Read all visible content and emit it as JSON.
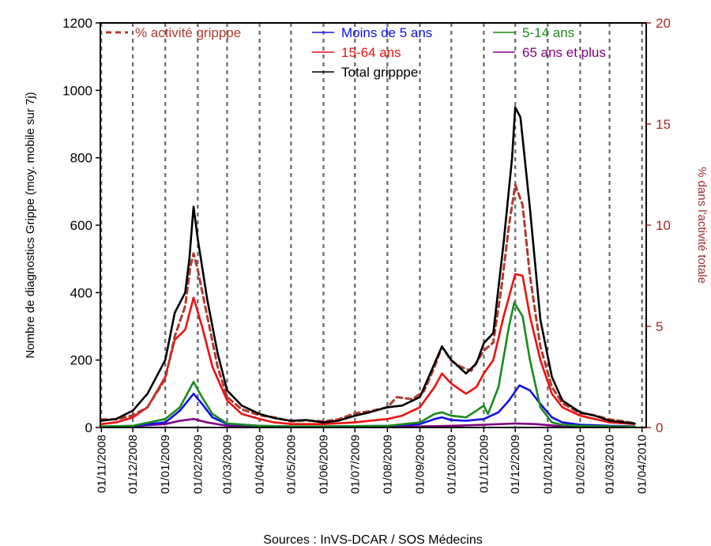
{
  "chart_data": {
    "type": "line",
    "ylabel": "Nombre de diagnostics Grippe (moy. mobile sur 7j)",
    "ylabel_right": "% dans l'activité totale",
    "source": "Sources : InVS-DCAR / SOS Médecins",
    "ylim": [
      0,
      1200
    ],
    "ylim_right": [
      0,
      20
    ],
    "yticks": [
      "0",
      "200",
      "400",
      "600",
      "800",
      "1000",
      "1200"
    ],
    "yticks_right": [
      "0",
      "5",
      "10",
      "15",
      "20"
    ],
    "xlim": [
      "2008-10-31",
      "2010-04-05"
    ],
    "x_ticks": [
      "01/11/2008",
      "01/12/2008",
      "01/01/2009",
      "01/02/2009",
      "01/03/2009",
      "01/04/2009",
      "01/05/2009",
      "01/06/2009",
      "01/07/2009",
      "01/08/2009",
      "01/09/2009",
      "01/10/2009",
      "01/11/2009",
      "01/12/2009",
      "01/01/2010",
      "01/02/2010",
      "01/03/2010",
      "01/04/2010"
    ],
    "x_tick_dates": [
      "2008-11-01",
      "2008-12-01",
      "2009-01-01",
      "2009-02-01",
      "2009-03-01",
      "2009-04-01",
      "2009-05-01",
      "2009-06-01",
      "2009-07-01",
      "2009-08-01",
      "2009-09-01",
      "2009-10-01",
      "2009-11-01",
      "2009-12-01",
      "2010-01-01",
      "2010-02-01",
      "2010-03-01",
      "2010-04-01"
    ],
    "grid": "vertical dashed lines at each month",
    "legend_placement": "top, inside plot",
    "series": [
      {
        "name": "% activité gripppe",
        "axis": "right",
        "color": "#b03a2e",
        "dash": "dashed",
        "points": [
          [
            "2008-11-01",
            0.4
          ],
          [
            "2008-11-15",
            0.4
          ],
          [
            "2008-12-01",
            0.6
          ],
          [
            "2008-12-15",
            1.0
          ],
          [
            "2009-01-01",
            2.4
          ],
          [
            "2009-01-10",
            4.5
          ],
          [
            "2009-01-20",
            6.0
          ],
          [
            "2009-01-25",
            8.0
          ],
          [
            "2009-01-28",
            8.6
          ],
          [
            "2009-02-01",
            7.8
          ],
          [
            "2009-02-10",
            5.5
          ],
          [
            "2009-02-20",
            3.0
          ],
          [
            "2009-03-01",
            1.5
          ],
          [
            "2009-03-15",
            0.9
          ],
          [
            "2009-04-01",
            0.6
          ],
          [
            "2009-04-15",
            0.5
          ],
          [
            "2009-05-01",
            0.3
          ],
          [
            "2009-05-15",
            0.35
          ],
          [
            "2009-06-01",
            0.3
          ],
          [
            "2009-06-15",
            0.4
          ],
          [
            "2009-07-01",
            0.7
          ],
          [
            "2009-07-15",
            0.8
          ],
          [
            "2009-08-01",
            1.0
          ],
          [
            "2009-08-10",
            1.5
          ],
          [
            "2009-08-25",
            1.4
          ],
          [
            "2009-09-05",
            1.8
          ],
          [
            "2009-09-15",
            3.0
          ],
          [
            "2009-09-22",
            4.0
          ],
          [
            "2009-10-01",
            3.3
          ],
          [
            "2009-10-10",
            3.0
          ],
          [
            "2009-10-20",
            2.8
          ],
          [
            "2009-11-01",
            3.8
          ],
          [
            "2009-11-10",
            4.2
          ],
          [
            "2009-11-18",
            7.0
          ],
          [
            "2009-11-25",
            10.0
          ],
          [
            "2009-12-01",
            12.0
          ],
          [
            "2009-12-08",
            11.0
          ],
          [
            "2009-12-15",
            7.5
          ],
          [
            "2009-12-25",
            4.0
          ],
          [
            "2010-01-05",
            2.0
          ],
          [
            "2010-01-15",
            1.2
          ],
          [
            "2010-02-01",
            0.7
          ],
          [
            "2010-02-15",
            0.6
          ],
          [
            "2010-03-01",
            0.4
          ],
          [
            "2010-03-15",
            0.3
          ],
          [
            "2010-03-25",
            0.2
          ]
        ]
      },
      {
        "name": "Moins de 5 ans",
        "axis": "left",
        "color": "#1010ee",
        "points": [
          [
            "2008-11-01",
            2
          ],
          [
            "2008-12-01",
            5
          ],
          [
            "2009-01-01",
            15
          ],
          [
            "2009-01-15",
            50
          ],
          [
            "2009-01-28",
            100
          ],
          [
            "2009-02-05",
            70
          ],
          [
            "2009-02-15",
            30
          ],
          [
            "2009-03-01",
            10
          ],
          [
            "2009-04-01",
            5
          ],
          [
            "2009-05-01",
            3
          ],
          [
            "2009-06-01",
            3
          ],
          [
            "2009-07-01",
            4
          ],
          [
            "2009-08-01",
            5
          ],
          [
            "2009-09-01",
            10
          ],
          [
            "2009-09-15",
            25
          ],
          [
            "2009-09-22",
            30
          ],
          [
            "2009-10-01",
            22
          ],
          [
            "2009-10-15",
            20
          ],
          [
            "2009-11-01",
            25
          ],
          [
            "2009-11-15",
            45
          ],
          [
            "2009-11-25",
            80
          ],
          [
            "2009-12-05",
            125
          ],
          [
            "2009-12-15",
            110
          ],
          [
            "2009-12-25",
            70
          ],
          [
            "2010-01-05",
            30
          ],
          [
            "2010-01-15",
            15
          ],
          [
            "2010-02-01",
            8
          ],
          [
            "2010-03-01",
            5
          ],
          [
            "2010-03-25",
            3
          ]
        ]
      },
      {
        "name": "5-14 ans",
        "axis": "left",
        "color": "#1a8a1a",
        "points": [
          [
            "2008-11-01",
            3
          ],
          [
            "2008-12-01",
            5
          ],
          [
            "2009-01-01",
            25
          ],
          [
            "2009-01-15",
            60
          ],
          [
            "2009-01-28",
            135
          ],
          [
            "2009-02-05",
            90
          ],
          [
            "2009-02-15",
            40
          ],
          [
            "2009-03-01",
            12
          ],
          [
            "2009-04-01",
            5
          ],
          [
            "2009-05-01",
            3
          ],
          [
            "2009-06-01",
            3
          ],
          [
            "2009-07-01",
            4
          ],
          [
            "2009-08-01",
            5
          ],
          [
            "2009-09-01",
            15
          ],
          [
            "2009-09-15",
            40
          ],
          [
            "2009-09-22",
            45
          ],
          [
            "2009-10-01",
            35
          ],
          [
            "2009-10-15",
            30
          ],
          [
            "2009-10-25",
            50
          ],
          [
            "2009-11-01",
            65
          ],
          [
            "2009-11-05",
            40
          ],
          [
            "2009-11-15",
            120
          ],
          [
            "2009-11-25",
            300
          ],
          [
            "2009-11-30",
            370
          ],
          [
            "2009-12-08",
            330
          ],
          [
            "2009-12-15",
            200
          ],
          [
            "2009-12-25",
            60
          ],
          [
            "2010-01-05",
            15
          ],
          [
            "2010-01-15",
            8
          ],
          [
            "2010-02-01",
            5
          ],
          [
            "2010-03-01",
            3
          ],
          [
            "2010-03-25",
            2
          ]
        ]
      },
      {
        "name": "15-64 ans",
        "axis": "left",
        "color": "#ee1010",
        "points": [
          [
            "2008-11-01",
            10
          ],
          [
            "2008-11-15",
            15
          ],
          [
            "2008-12-01",
            30
          ],
          [
            "2008-12-15",
            60
          ],
          [
            "2009-01-01",
            150
          ],
          [
            "2009-01-10",
            260
          ],
          [
            "2009-01-20",
            290
          ],
          [
            "2009-01-28",
            385
          ],
          [
            "2009-02-05",
            300
          ],
          [
            "2009-02-15",
            180
          ],
          [
            "2009-03-01",
            80
          ],
          [
            "2009-03-15",
            40
          ],
          [
            "2009-04-01",
            25
          ],
          [
            "2009-04-15",
            15
          ],
          [
            "2009-05-01",
            10
          ],
          [
            "2009-06-01",
            10
          ],
          [
            "2009-07-01",
            15
          ],
          [
            "2009-07-15",
            20
          ],
          [
            "2009-08-01",
            25
          ],
          [
            "2009-08-15",
            35
          ],
          [
            "2009-09-01",
            60
          ],
          [
            "2009-09-15",
            120
          ],
          [
            "2009-09-22",
            160
          ],
          [
            "2009-10-01",
            130
          ],
          [
            "2009-10-15",
            100
          ],
          [
            "2009-10-25",
            120
          ],
          [
            "2009-11-01",
            160
          ],
          [
            "2009-11-10",
            200
          ],
          [
            "2009-11-20",
            330
          ],
          [
            "2009-12-01",
            455
          ],
          [
            "2009-12-08",
            450
          ],
          [
            "2009-12-15",
            330
          ],
          [
            "2009-12-25",
            200
          ],
          [
            "2010-01-05",
            100
          ],
          [
            "2010-01-15",
            60
          ],
          [
            "2010-02-01",
            35
          ],
          [
            "2010-02-15",
            25
          ],
          [
            "2010-03-01",
            15
          ],
          [
            "2010-03-25",
            10
          ]
        ]
      },
      {
        "name": "65 ans et plus",
        "axis": "left",
        "color": "#800080",
        "points": [
          [
            "2008-11-01",
            2
          ],
          [
            "2008-12-01",
            4
          ],
          [
            "2009-01-01",
            10
          ],
          [
            "2009-01-15",
            20
          ],
          [
            "2009-01-28",
            25
          ],
          [
            "2009-02-10",
            15
          ],
          [
            "2009-03-01",
            5
          ],
          [
            "2009-04-01",
            3
          ],
          [
            "2009-05-01",
            2
          ],
          [
            "2009-07-01",
            2
          ],
          [
            "2009-09-01",
            3
          ],
          [
            "2009-10-01",
            5
          ],
          [
            "2009-11-01",
            8
          ],
          [
            "2009-12-01",
            12
          ],
          [
            "2009-12-20",
            10
          ],
          [
            "2010-01-10",
            5
          ],
          [
            "2010-02-01",
            3
          ],
          [
            "2010-03-25",
            2
          ]
        ]
      },
      {
        "name": "Total gripppe",
        "axis": "left",
        "color": "#000000",
        "points": [
          [
            "2008-11-01",
            20
          ],
          [
            "2008-11-15",
            25
          ],
          [
            "2008-12-01",
            50
          ],
          [
            "2008-12-15",
            100
          ],
          [
            "2009-01-01",
            200
          ],
          [
            "2009-01-10",
            340
          ],
          [
            "2009-01-20",
            400
          ],
          [
            "2009-01-24",
            500
          ],
          [
            "2009-01-28",
            655
          ],
          [
            "2009-02-01",
            560
          ],
          [
            "2009-02-10",
            380
          ],
          [
            "2009-02-20",
            220
          ],
          [
            "2009-03-01",
            110
          ],
          [
            "2009-03-15",
            65
          ],
          [
            "2009-04-01",
            40
          ],
          [
            "2009-04-15",
            28
          ],
          [
            "2009-05-01",
            20
          ],
          [
            "2009-05-15",
            22
          ],
          [
            "2009-06-01",
            15
          ],
          [
            "2009-06-15",
            20
          ],
          [
            "2009-07-01",
            35
          ],
          [
            "2009-07-15",
            45
          ],
          [
            "2009-08-01",
            60
          ],
          [
            "2009-08-15",
            65
          ],
          [
            "2009-09-01",
            90
          ],
          [
            "2009-09-15",
            190
          ],
          [
            "2009-09-22",
            240
          ],
          [
            "2009-10-01",
            200
          ],
          [
            "2009-10-15",
            160
          ],
          [
            "2009-10-25",
            190
          ],
          [
            "2009-11-01",
            250
          ],
          [
            "2009-11-10",
            280
          ],
          [
            "2009-11-20",
            550
          ],
          [
            "2009-11-28",
            800
          ],
          [
            "2009-12-01",
            950
          ],
          [
            "2009-12-06",
            920
          ],
          [
            "2009-12-15",
            650
          ],
          [
            "2009-12-25",
            320
          ],
          [
            "2010-01-05",
            150
          ],
          [
            "2010-01-15",
            80
          ],
          [
            "2010-02-01",
            45
          ],
          [
            "2010-02-15",
            35
          ],
          [
            "2010-03-01",
            20
          ],
          [
            "2010-03-25",
            12
          ]
        ]
      }
    ]
  }
}
